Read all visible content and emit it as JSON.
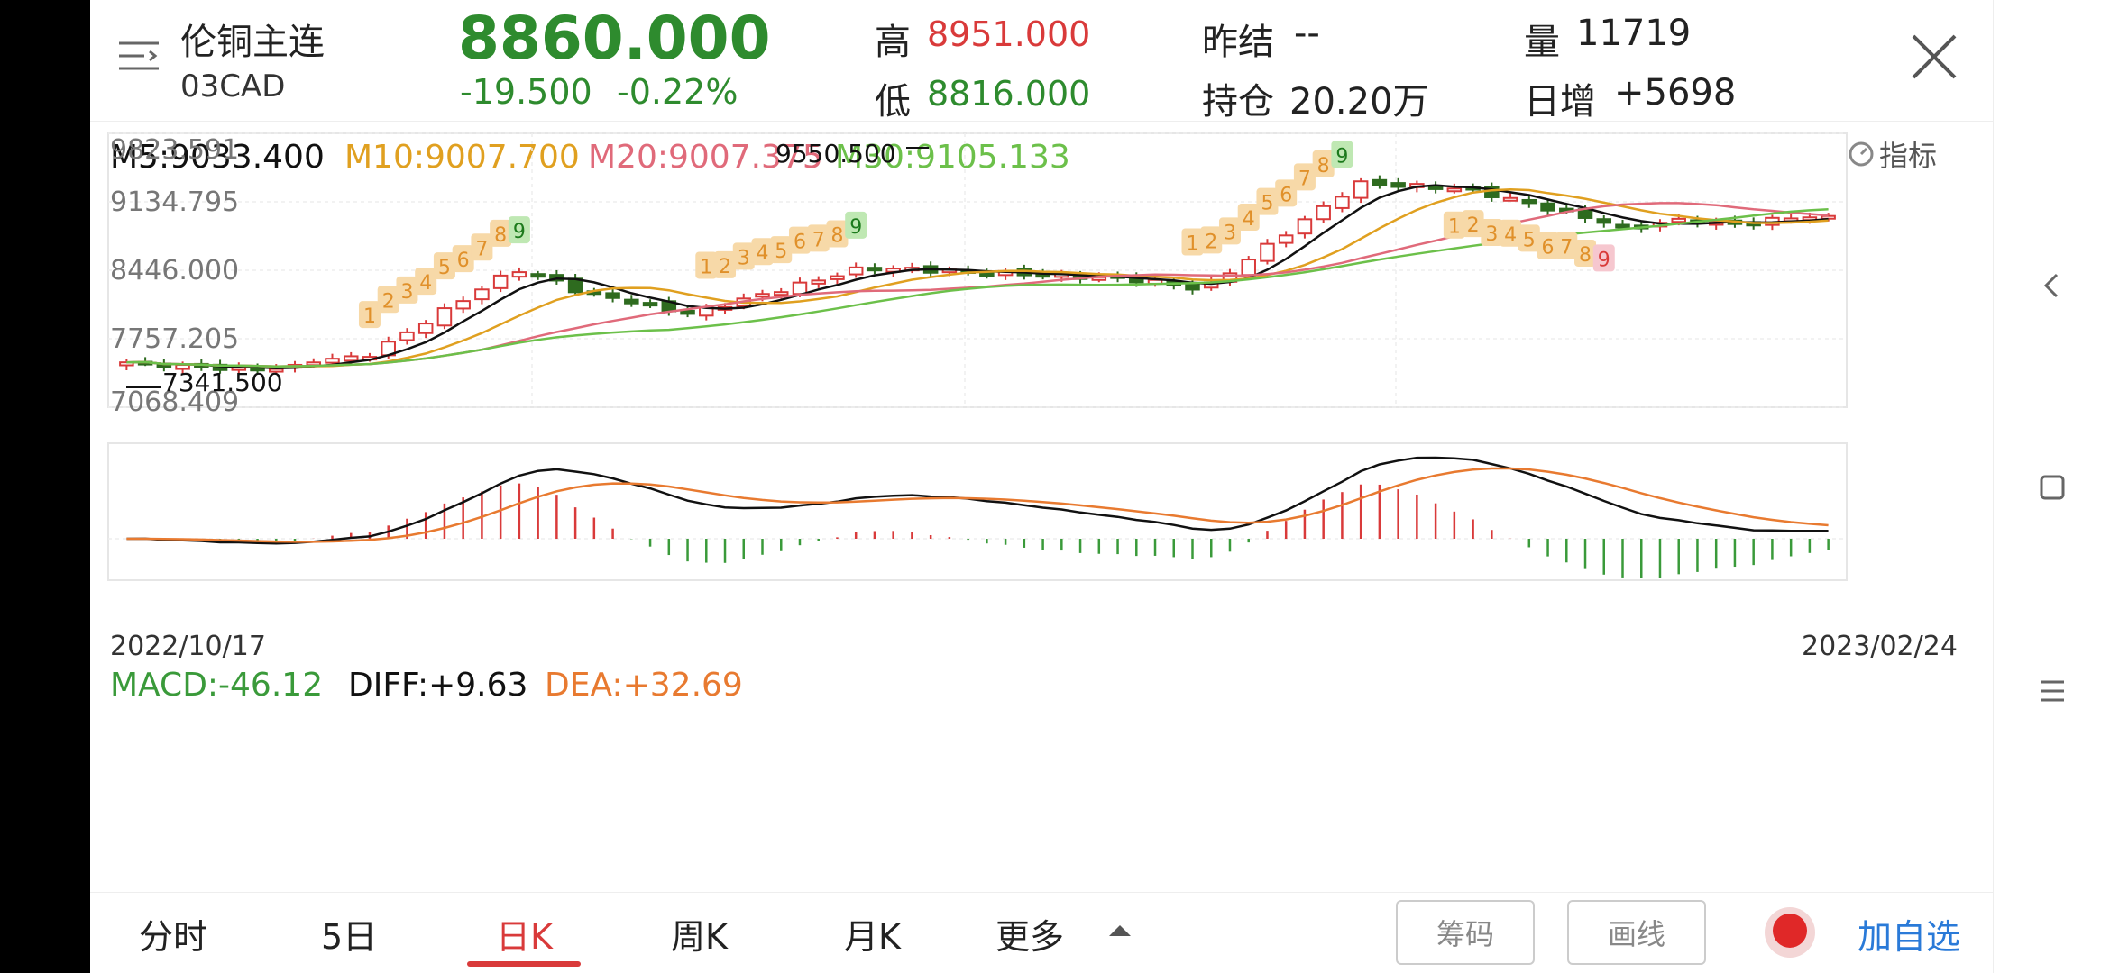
{
  "header": {
    "title": "伦铜主连",
    "code": "03CAD",
    "price": "8860.000",
    "change": "-19.500",
    "change_pct": "-0.22%",
    "high_label": "高",
    "high": "8951.000",
    "low_label": "低",
    "low": "8816.000",
    "settle_label": "昨结",
    "settle": "--",
    "position_label": "持仓",
    "position": "20.20万",
    "volume_label": "量",
    "volume": "11719",
    "daily_inc_label": "日增",
    "daily_inc": "+5698"
  },
  "ma_legend": {
    "m5": "M5:9033.400",
    "m10": "M10:9007.700",
    "m20": "M20:9007.375",
    "m30": "M30:9105.133",
    "indicator_label": "指标"
  },
  "macd_legend": {
    "macd": "MACD:-46.12",
    "diff": "DIFF:+9.63",
    "dea": "DEA:+32.69"
  },
  "chart_data": {
    "type": "candlestick",
    "y_ticks": [
      "9823.591",
      "9134.795",
      "8446.000",
      "7757.205",
      "7068.409"
    ],
    "ylim": [
      7068.409,
      9823.591
    ],
    "x_start": "2022/10/17",
    "x_end": "2023/02/24",
    "annotations": [
      {
        "text": "9550.500",
        "type": "high-marker"
      },
      {
        "text": "7341.500",
        "type": "low-marker"
      }
    ],
    "td_counts_up_1": [
      "1",
      "2",
      "3",
      "4",
      "5",
      "6",
      "7",
      "8",
      "9"
    ],
    "td_counts_up_2": [
      "1",
      "2",
      "3",
      "4",
      "5",
      "6",
      "7",
      "8",
      "9"
    ],
    "td_counts_up_3": [
      "1",
      "2",
      "3",
      "4",
      "5",
      "6",
      "7",
      "8",
      "9"
    ],
    "td_counts_down": [
      "1",
      "2",
      "3",
      "4",
      "5",
      "6",
      "7",
      "8",
      "9"
    ],
    "colors": {
      "up": "#d93a3a",
      "down": "#2e6b1f",
      "m5": "#111111",
      "m10": "#e0a020",
      "m20": "#e06a7a",
      "m30": "#6cc04a",
      "diff": "#111111",
      "dea": "#e87a30"
    }
  },
  "bottom": {
    "tabs": [
      "分时",
      "5日",
      "日K",
      "周K",
      "月K",
      "更多"
    ],
    "active_tab": "日K",
    "chip_btn": "筹码",
    "draw_btn": "画线",
    "add_btn": "加自选"
  }
}
